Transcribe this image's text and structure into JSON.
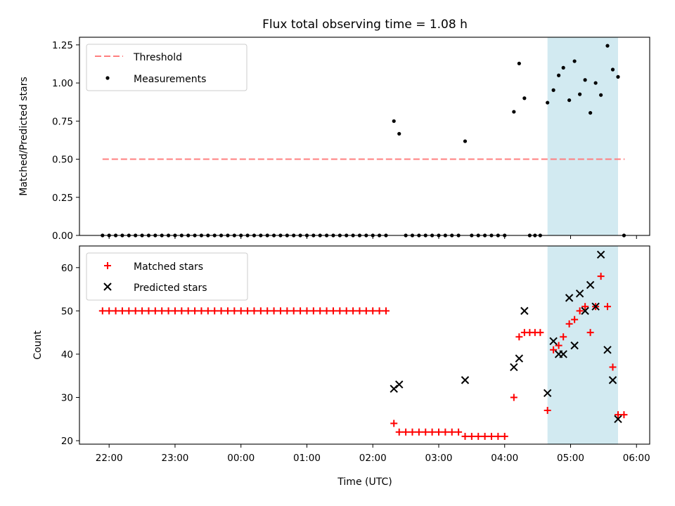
{
  "chart_data": {
    "title": "Flux total observing time = 1.08 h",
    "shade": {
      "x0": 4.65,
      "x1": 5.72,
      "color": "#add8e6"
    },
    "xlabel": "Time (UTC)",
    "xlim": [
      -2.45,
      6.2
    ],
    "xticks": [
      {
        "v": -2,
        "label": "22:00"
      },
      {
        "v": -1,
        "label": "23:00"
      },
      {
        "v": 0,
        "label": "00:00"
      },
      {
        "v": 1,
        "label": "01:00"
      },
      {
        "v": 2,
        "label": "02:00"
      },
      {
        "v": 3,
        "label": "03:00"
      },
      {
        "v": 4,
        "label": "04:00"
      },
      {
        "v": 5,
        "label": "05:00"
      },
      {
        "v": 6,
        "label": "06:00"
      }
    ],
    "panels": [
      {
        "type": "scatter",
        "ylabel": "Matched/Predicted stars",
        "ylim": [
          0,
          1.3
        ],
        "yticks": [
          "0.00",
          "0.25",
          "0.50",
          "0.75",
          "1.00",
          "1.25"
        ],
        "threshold": {
          "name": "Threshold",
          "value": 0.5,
          "x0": -2.1,
          "x1": 5.82,
          "color": "#ff7f7f"
        },
        "measurements": {
          "name": "Measurements",
          "color": "#000000",
          "points": [
            [
              -2.1,
              0
            ],
            [
              -2.0,
              0
            ],
            [
              -1.9,
              0
            ],
            [
              -1.8,
              0
            ],
            [
              -1.7,
              0
            ],
            [
              -1.6,
              0
            ],
            [
              -1.5,
              0
            ],
            [
              -1.4,
              0
            ],
            [
              -1.3,
              0
            ],
            [
              -1.2,
              0
            ],
            [
              -1.1,
              0
            ],
            [
              -1.0,
              0
            ],
            [
              -0.9,
              0
            ],
            [
              -0.8,
              0
            ],
            [
              -0.7,
              0
            ],
            [
              -0.6,
              0
            ],
            [
              -0.5,
              0
            ],
            [
              -0.4,
              0
            ],
            [
              -0.3,
              0
            ],
            [
              -0.2,
              0
            ],
            [
              -0.1,
              0
            ],
            [
              0.0,
              0
            ],
            [
              0.1,
              0
            ],
            [
              0.2,
              0
            ],
            [
              0.3,
              0
            ],
            [
              0.4,
              0
            ],
            [
              0.5,
              0
            ],
            [
              0.6,
              0
            ],
            [
              0.7,
              0
            ],
            [
              0.8,
              0
            ],
            [
              0.9,
              0
            ],
            [
              1.0,
              0
            ],
            [
              1.1,
              0
            ],
            [
              1.2,
              0
            ],
            [
              1.3,
              0
            ],
            [
              1.4,
              0
            ],
            [
              1.5,
              0
            ],
            [
              1.6,
              0
            ],
            [
              1.7,
              0
            ],
            [
              1.8,
              0
            ],
            [
              1.9,
              0
            ],
            [
              2.0,
              0
            ],
            [
              2.1,
              0
            ],
            [
              2.2,
              0
            ],
            [
              2.32,
              0.75
            ],
            [
              2.4,
              0.667
            ],
            [
              2.5,
              0
            ],
            [
              2.6,
              0
            ],
            [
              2.7,
              0
            ],
            [
              2.8,
              0
            ],
            [
              2.9,
              0
            ],
            [
              3.0,
              0
            ],
            [
              3.1,
              0
            ],
            [
              3.2,
              0
            ],
            [
              3.3,
              0
            ],
            [
              3.4,
              0.618
            ],
            [
              3.5,
              0
            ],
            [
              3.6,
              0
            ],
            [
              3.7,
              0
            ],
            [
              3.8,
              0
            ],
            [
              3.9,
              0
            ],
            [
              4.0,
              0
            ],
            [
              4.14,
              0.811
            ],
            [
              4.22,
              1.128
            ],
            [
              4.3,
              0.9
            ],
            [
              4.38,
              0
            ],
            [
              4.46,
              0
            ],
            [
              4.54,
              0
            ],
            [
              4.65,
              0.871
            ],
            [
              4.74,
              0.953
            ],
            [
              4.82,
              1.05
            ],
            [
              4.89,
              1.1
            ],
            [
              4.98,
              0.887
            ],
            [
              5.06,
              1.143
            ],
            [
              5.14,
              0.926
            ],
            [
              5.22,
              1.02
            ],
            [
              5.3,
              0.804
            ],
            [
              5.38,
              1.0
            ],
            [
              5.46,
              0.921
            ],
            [
              5.56,
              1.244
            ],
            [
              5.64,
              1.088
            ],
            [
              5.72,
              1.04
            ],
            [
              5.81,
              0
            ]
          ]
        }
      },
      {
        "type": "scatter",
        "ylabel": "Count",
        "ylim": [
          19.2,
          65
        ],
        "yticks": [
          "20",
          "30",
          "40",
          "50",
          "60"
        ],
        "matched": {
          "name": "Matched stars",
          "color": "#ff0000",
          "points": [
            [
              -2.1,
              50
            ],
            [
              -2.0,
              50
            ],
            [
              -1.9,
              50
            ],
            [
              -1.8,
              50
            ],
            [
              -1.7,
              50
            ],
            [
              -1.6,
              50
            ],
            [
              -1.5,
              50
            ],
            [
              -1.4,
              50
            ],
            [
              -1.3,
              50
            ],
            [
              -1.2,
              50
            ],
            [
              -1.1,
              50
            ],
            [
              -1.0,
              50
            ],
            [
              -0.9,
              50
            ],
            [
              -0.8,
              50
            ],
            [
              -0.7,
              50
            ],
            [
              -0.6,
              50
            ],
            [
              -0.5,
              50
            ],
            [
              -0.4,
              50
            ],
            [
              -0.3,
              50
            ],
            [
              -0.2,
              50
            ],
            [
              -0.1,
              50
            ],
            [
              0.0,
              50
            ],
            [
              0.1,
              50
            ],
            [
              0.2,
              50
            ],
            [
              0.3,
              50
            ],
            [
              0.4,
              50
            ],
            [
              0.5,
              50
            ],
            [
              0.6,
              50
            ],
            [
              0.7,
              50
            ],
            [
              0.8,
              50
            ],
            [
              0.9,
              50
            ],
            [
              1.0,
              50
            ],
            [
              1.1,
              50
            ],
            [
              1.2,
              50
            ],
            [
              1.3,
              50
            ],
            [
              1.4,
              50
            ],
            [
              1.5,
              50
            ],
            [
              1.6,
              50
            ],
            [
              1.7,
              50
            ],
            [
              1.8,
              50
            ],
            [
              1.9,
              50
            ],
            [
              2.0,
              50
            ],
            [
              2.1,
              50
            ],
            [
              2.2,
              50
            ],
            [
              2.32,
              24
            ],
            [
              2.4,
              22
            ],
            [
              2.5,
              22
            ],
            [
              2.6,
              22
            ],
            [
              2.7,
              22
            ],
            [
              2.8,
              22
            ],
            [
              2.9,
              22
            ],
            [
              3.0,
              22
            ],
            [
              3.1,
              22
            ],
            [
              3.2,
              22
            ],
            [
              3.3,
              22
            ],
            [
              3.4,
              21
            ],
            [
              3.5,
              21
            ],
            [
              3.6,
              21
            ],
            [
              3.7,
              21
            ],
            [
              3.8,
              21
            ],
            [
              3.9,
              21
            ],
            [
              4.0,
              21
            ],
            [
              4.14,
              30
            ],
            [
              4.22,
              44
            ],
            [
              4.3,
              45
            ],
            [
              4.38,
              45
            ],
            [
              4.46,
              45
            ],
            [
              4.54,
              45
            ],
            [
              4.65,
              27
            ],
            [
              4.74,
              41
            ],
            [
              4.82,
              42
            ],
            [
              4.89,
              44
            ],
            [
              4.98,
              47
            ],
            [
              5.06,
              48
            ],
            [
              5.14,
              50
            ],
            [
              5.22,
              51
            ],
            [
              5.3,
              45
            ],
            [
              5.38,
              51
            ],
            [
              5.46,
              58
            ],
            [
              5.56,
              51
            ],
            [
              5.64,
              37
            ],
            [
              5.72,
              26
            ],
            [
              5.81,
              26
            ]
          ]
        },
        "predicted": {
          "name": "Predicted stars",
          "color": "#000000",
          "points": [
            [
              2.32,
              32
            ],
            [
              2.4,
              33
            ],
            [
              3.4,
              34
            ],
            [
              4.14,
              37
            ],
            [
              4.22,
              39
            ],
            [
              4.3,
              50
            ],
            [
              4.65,
              31
            ],
            [
              4.74,
              43
            ],
            [
              4.82,
              40
            ],
            [
              4.89,
              40
            ],
            [
              4.98,
              53
            ],
            [
              5.06,
              42
            ],
            [
              5.14,
              54
            ],
            [
              5.22,
              50
            ],
            [
              5.3,
              56
            ],
            [
              5.38,
              51
            ],
            [
              5.46,
              63
            ],
            [
              5.56,
              41
            ],
            [
              5.64,
              34
            ],
            [
              5.72,
              25
            ]
          ]
        }
      }
    ]
  }
}
